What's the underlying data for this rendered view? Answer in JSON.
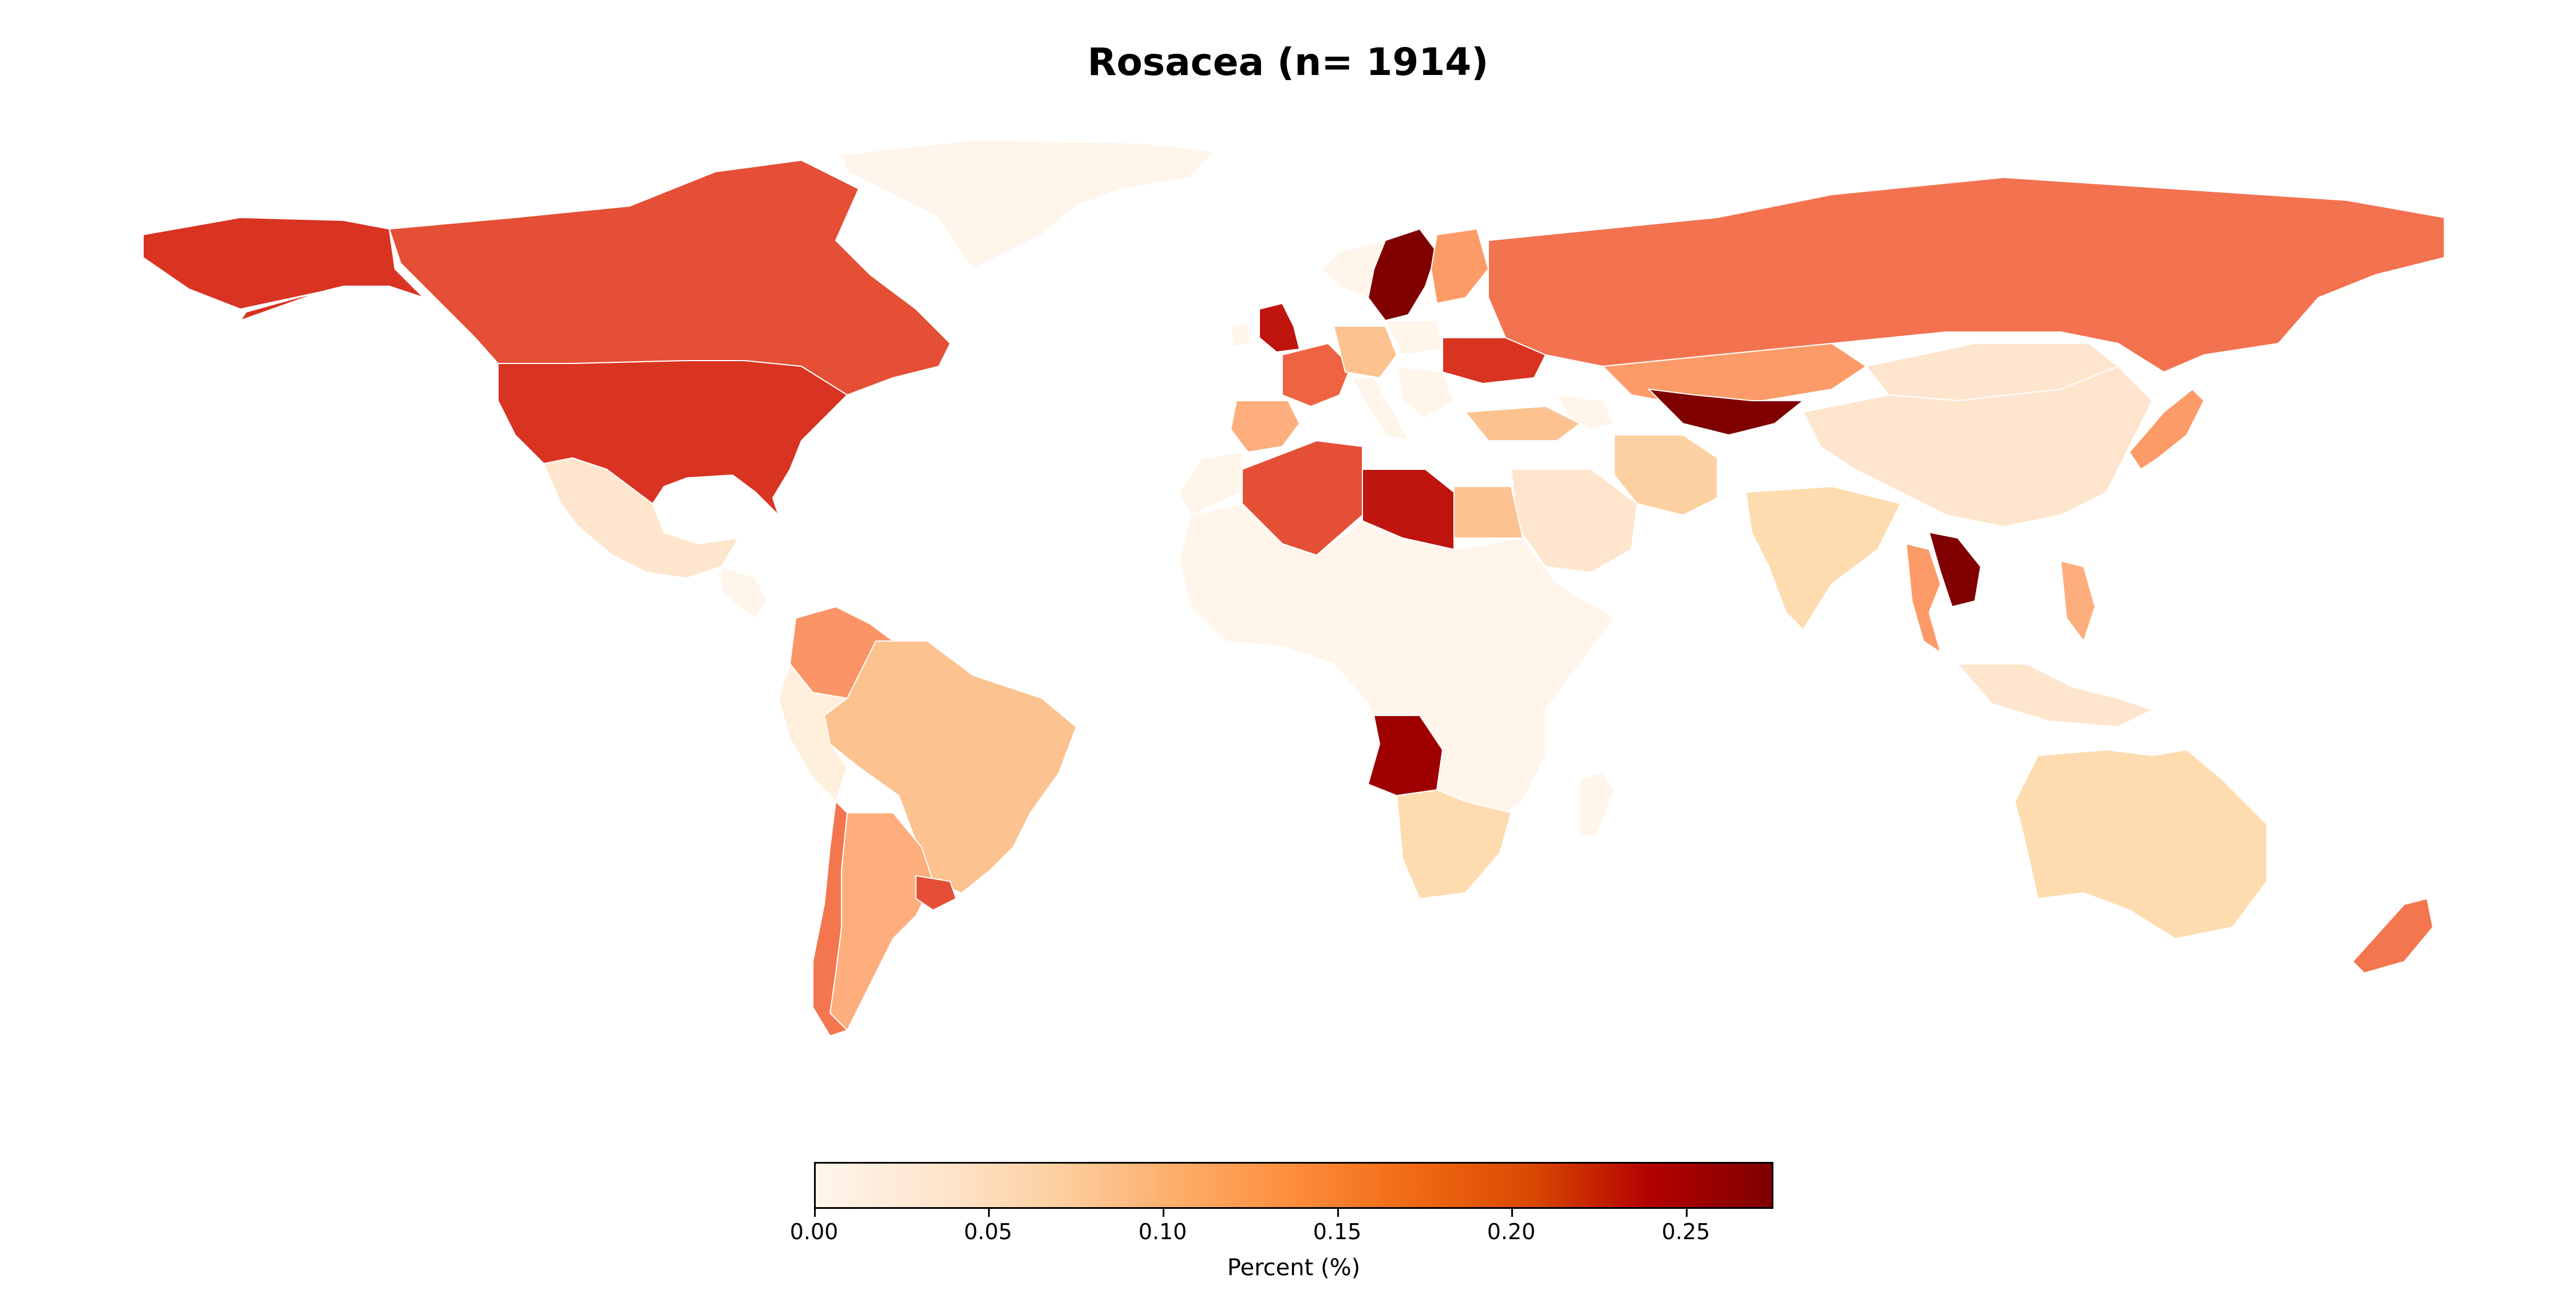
{
  "title": "Rosacea (n= 1914)",
  "colorbar": {
    "label": "Percent (%)",
    "min": 0.0,
    "max": 0.275,
    "ticks": [
      {
        "value": 0.0,
        "label": "0.00"
      },
      {
        "value": 0.05,
        "label": "0.05"
      },
      {
        "value": 0.1,
        "label": "0.10"
      },
      {
        "value": 0.15,
        "label": "0.15"
      },
      {
        "value": 0.2,
        "label": "0.20"
      },
      {
        "value": 0.25,
        "label": "0.25"
      }
    ],
    "colormap": [
      "#fff5eb",
      "#fee6ce",
      "#fdd0a2",
      "#fdae6b",
      "#fd8d3c",
      "#f16913",
      "#d94801",
      "#b30000",
      "#7f0000"
    ]
  },
  "regions": [
    {
      "name": "United States",
      "value": 0.19,
      "color": "#d93322"
    },
    {
      "name": "Canada",
      "value": 0.17,
      "color": "#e44f35"
    },
    {
      "name": "Alaska",
      "value": 0.19,
      "color": "#d93322"
    },
    {
      "name": "Greenland",
      "value": 0.0,
      "color": "#fff5eb"
    },
    {
      "name": "Mexico",
      "value": 0.03,
      "color": "#fee6ce"
    },
    {
      "name": "Colombia",
      "value": 0.11,
      "color": "#fb9466"
    },
    {
      "name": "Brazil",
      "value": 0.07,
      "color": "#fcc290"
    },
    {
      "name": "Peru",
      "value": 0.02,
      "color": "#ffefdd"
    },
    {
      "name": "Argentina",
      "value": 0.09,
      "color": "#fdae7c"
    },
    {
      "name": "Chile",
      "value": 0.14,
      "color": "#f4764f"
    },
    {
      "name": "Uruguay",
      "value": 0.17,
      "color": "#e44f35"
    },
    {
      "name": "Russia",
      "value": 0.15,
      "color": "#f37250"
    },
    {
      "name": "Kazakhstan",
      "value": 0.1,
      "color": "#fc9b68"
    },
    {
      "name": "China",
      "value": 0.03,
      "color": "#fee6ce"
    },
    {
      "name": "Mongolia",
      "value": 0.03,
      "color": "#fee6ce"
    },
    {
      "name": "India",
      "value": 0.05,
      "color": "#fedcb0"
    },
    {
      "name": "Saudi Arabia",
      "value": 0.03,
      "color": "#fee6ce"
    },
    {
      "name": "Iran",
      "value": 0.06,
      "color": "#fdd0a2"
    },
    {
      "name": "Algeria",
      "value": 0.17,
      "color": "#e44f35"
    },
    {
      "name": "Libya",
      "value": 0.22,
      "color": "#c0140f"
    },
    {
      "name": "Egypt",
      "value": 0.07,
      "color": "#fcc290"
    },
    {
      "name": "Angola",
      "value": 0.27,
      "color": "#9e0000"
    },
    {
      "name": "Central Africa",
      "value": 0.0,
      "color": "#fff5eb"
    },
    {
      "name": "South Africa",
      "value": 0.05,
      "color": "#fedcb0"
    },
    {
      "name": "Australia",
      "value": 0.05,
      "color": "#fedcb0"
    },
    {
      "name": "New Zealand",
      "value": 0.14,
      "color": "#f4764f"
    },
    {
      "name": "Sweden",
      "value": 0.27,
      "color": "#800000"
    },
    {
      "name": "Finland",
      "value": 0.1,
      "color": "#fc9b68"
    },
    {
      "name": "United Kingdom",
      "value": 0.22,
      "color": "#c0140f"
    },
    {
      "name": "France",
      "value": 0.16,
      "color": "#ee6442"
    },
    {
      "name": "Spain",
      "value": 0.09,
      "color": "#fdae7c"
    },
    {
      "name": "Germany",
      "value": 0.07,
      "color": "#fcc290"
    },
    {
      "name": "Ukraine",
      "value": 0.19,
      "color": "#d93322"
    },
    {
      "name": "Turkey",
      "value": 0.07,
      "color": "#fcc290"
    },
    {
      "name": "Uzbekistan",
      "value": 0.27,
      "color": "#800000"
    },
    {
      "name": "Laos",
      "value": 0.27,
      "color": "#800000"
    },
    {
      "name": "Thailand",
      "value": 0.1,
      "color": "#fc9b68"
    },
    {
      "name": "Japan",
      "value": 0.1,
      "color": "#fc9b68"
    },
    {
      "name": "Indonesia",
      "value": 0.03,
      "color": "#fee6ce"
    },
    {
      "name": "Philippines",
      "value": 0.09,
      "color": "#fdae7c"
    }
  ]
}
